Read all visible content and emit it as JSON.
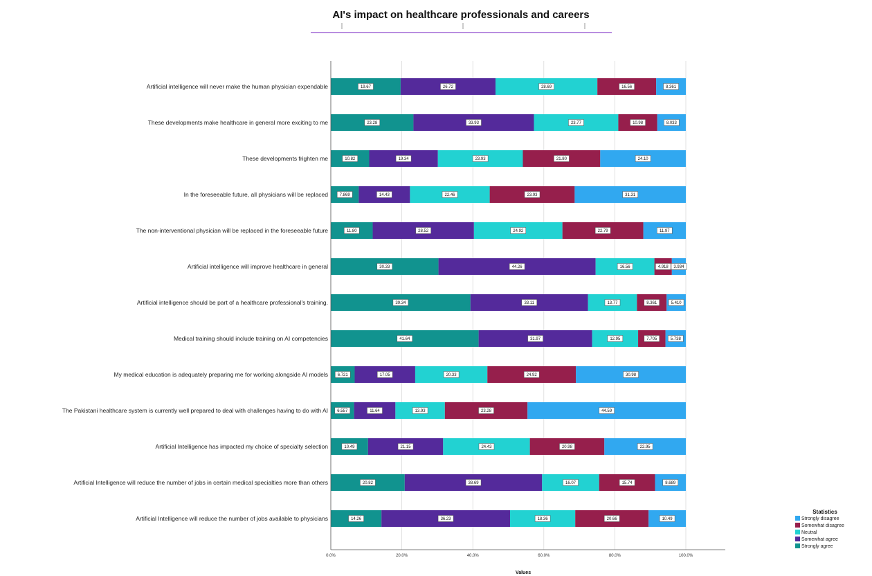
{
  "chart_data": {
    "type": "bar",
    "orientation": "horizontal",
    "stacked": true,
    "title": "AI's impact on healthcare professionals and careers",
    "xlabel": "Values",
    "ylabel": "",
    "xlim": [
      0,
      100
    ],
    "x_ticks": [
      "0.0%",
      "20.0%",
      "40.0%",
      "60.0%",
      "80.0%",
      "100.0%"
    ],
    "grid": true,
    "legend_title": "Statistics",
    "legend_placement": "bottom-right",
    "categories": [
      "Artificial intelligence will never make the human physician expendable",
      "These developments make healthcare in general more exciting to me",
      "These developments frighten me",
      "In the foreseeable future, all physicians will be replaced",
      "The non-interventional physician will be replaced in the foreseeable future",
      "Artificial intelligence will improve healthcare in general",
      "Artificial intelligence should be part of a healthcare professional's training.",
      "Medical training should include training on AI competencies",
      "My medical education is adequately preparing me for working alongside AI models",
      "The Pakistani healthcare system is currently well prepared to deal with challenges having to do with AI",
      "Artificial Intelligence has impacted my choice of specialty selection",
      "Artificial Intelligence will reduce the number of jobs in certain medical specialties more than others",
      "Artificial Intelligence will reduce the number of jobs available to physicians"
    ],
    "series": [
      {
        "name": "Strongly agree",
        "color": "#11938f",
        "values": [
          19.67,
          23.28,
          10.82,
          7.869,
          11.8,
          30.33,
          39.34,
          41.64,
          6.721,
          6.557,
          10.49,
          20.82,
          14.26
        ],
        "labels": [
          "19.67",
          "23.28",
          "10.82",
          "7.869",
          "11.80",
          "30.33",
          "39.34",
          "41.64",
          "6.721",
          "6.557",
          "10.49",
          "20.82",
          "14.26"
        ]
      },
      {
        "name": "Somewhat agree",
        "color": "#542a9b",
        "values": [
          26.72,
          33.93,
          19.34,
          14.43,
          28.52,
          44.26,
          33.11,
          31.97,
          17.05,
          11.64,
          21.15,
          38.69,
          36.23
        ],
        "labels": [
          "26.72",
          "33.93",
          "19.34",
          "14.43",
          "28.52",
          "44.26",
          "33.11",
          "31.97",
          "17.05",
          "11.64",
          "21.15",
          "38.69",
          "36.23"
        ]
      },
      {
        "name": "Neutral",
        "color": "#22d2d2",
        "values": [
          28.69,
          23.77,
          23.93,
          22.46,
          24.92,
          16.56,
          13.77,
          12.95,
          20.33,
          13.93,
          24.43,
          16.07,
          18.36
        ],
        "labels": [
          "28.69",
          "23.77",
          "23.93",
          "22.46",
          "24.92",
          "16.56",
          "13.77",
          "12.95",
          "20.33",
          "13.93",
          "24.43",
          "16.07",
          "18.36"
        ]
      },
      {
        "name": "Somewhat disagree",
        "color": "#961f4c",
        "values": [
          16.56,
          10.98,
          21.8,
          23.93,
          22.79,
          4.918,
          8.361,
          7.705,
          24.92,
          23.28,
          20.98,
          15.74,
          20.66
        ],
        "labels": [
          "16.56",
          "10.98",
          "21.80",
          "23.93",
          "22.79",
          "4.918",
          "8.361",
          "7.705",
          "24.92",
          "23.28",
          "20.98",
          "15.74",
          "20.66"
        ]
      },
      {
        "name": "Strongly disagree",
        "color": "#31a8f0",
        "values": [
          8.361,
          8.033,
          24.1,
          31.31,
          11.97,
          3.934,
          5.41,
          5.738,
          30.98,
          44.59,
          22.95,
          8.689,
          10.49
        ],
        "labels": [
          "8.361",
          "8.033",
          "24.10",
          "31.31",
          "11.97",
          "3.934",
          "5.410",
          "5.738",
          "30.98",
          "44.59",
          "22.95",
          "8.689",
          "10.49"
        ]
      }
    ]
  }
}
